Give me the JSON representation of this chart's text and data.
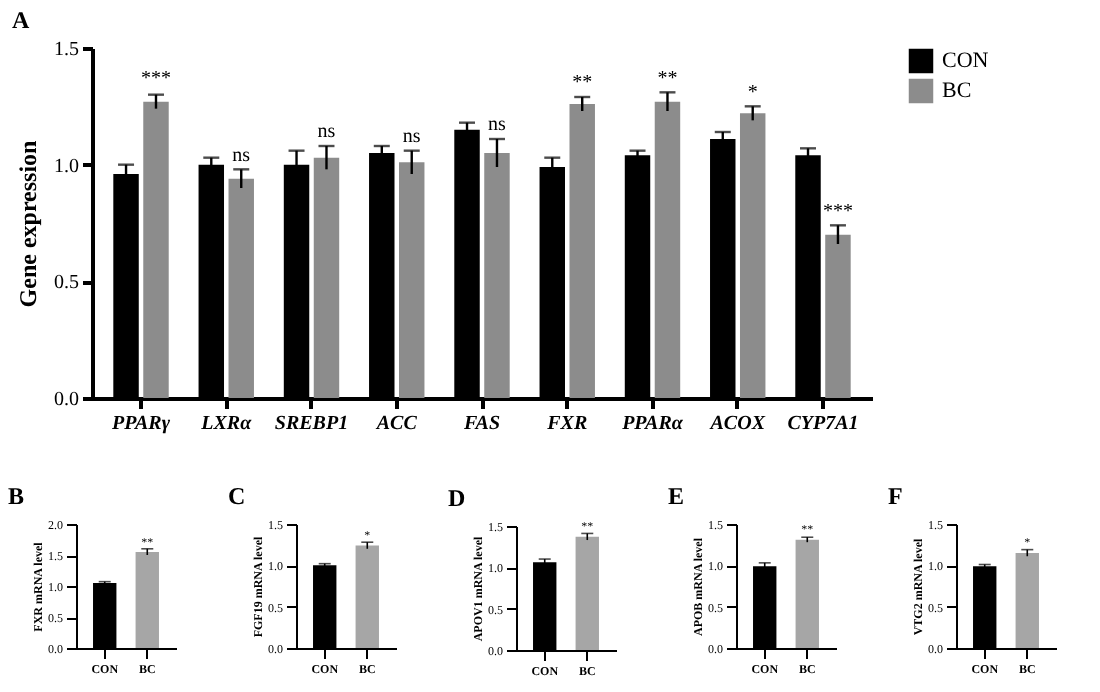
{
  "chart_data": [
    {
      "type": "bar",
      "title": "A",
      "ylabel": "Gene expression",
      "categories": [
        "PPARγ",
        "LXRα",
        "SREBP1",
        "ACC",
        "FAS",
        "FXR",
        "PPARα",
        "ACOX",
        "CYP7A1"
      ],
      "series": [
        {
          "name": "CON",
          "color": "#000000",
          "values": [
            0.96,
            1.0,
            1.0,
            1.05,
            1.15,
            0.99,
            1.04,
            1.11,
            1.04
          ],
          "errors": [
            0.04,
            0.03,
            0.06,
            0.03,
            0.03,
            0.04,
            0.02,
            0.03,
            0.03
          ]
        },
        {
          "name": "BC",
          "color": "#8c8c8c",
          "values": [
            1.27,
            0.94,
            1.03,
            1.01,
            1.05,
            1.26,
            1.27,
            1.22,
            0.7
          ],
          "errors": [
            0.03,
            0.04,
            0.05,
            0.05,
            0.06,
            0.03,
            0.04,
            0.03,
            0.04
          ]
        }
      ],
      "ylim": [
        0,
        1.5
      ],
      "yticks": [
        {
          "value": 0,
          "label": "0.0"
        },
        {
          "value": 0.5,
          "label": "0.5"
        },
        {
          "value": 1,
          "label": "1.0"
        },
        {
          "value": 1.5,
          "label": "1.5"
        }
      ],
      "legend": "top right",
      "annotations": [
        {
          "text": "***",
          "x": "PPARγ",
          "y": 1.33
        },
        {
          "text": "ns",
          "x": "LXRα",
          "y": 1.0
        },
        {
          "text": "ns",
          "x": "SREBP1",
          "y": 1.1
        },
        {
          "text": "ns",
          "x": "ACC",
          "y": 1.08
        },
        {
          "text": "ns",
          "x": "FAS",
          "y": 1.13
        },
        {
          "text": "**",
          "x": "FXR",
          "y": 1.31
        },
        {
          "text": "**",
          "x": "PPARα",
          "y": 1.33
        },
        {
          "text": "*",
          "x": "ACOX",
          "y": 1.27
        },
        {
          "text": "***",
          "x": "CYP7A1",
          "y": 0.76
        }
      ]
    },
    {
      "type": "bar",
      "title": "B",
      "ylabel": "FXR mRNA level",
      "categories": [
        "CON",
        "BC"
      ],
      "values": [
        1.05,
        1.55
      ],
      "colors": [
        "#000000",
        "#a6a6a6"
      ],
      "errors": [
        0.02,
        0.05
      ],
      "ylim": [
        0,
        2
      ],
      "yticks": [
        {
          "value": 0,
          "label": "0.0"
        },
        {
          "value": 0.5,
          "label": "0.5"
        },
        {
          "value": 1,
          "label": "1.0"
        },
        {
          "value": 1.5,
          "label": "1.5"
        },
        {
          "value": 2,
          "label": "2.0"
        }
      ],
      "annotations": [
        {
          "text": "**",
          "x": "BC",
          "y": 1.62
        }
      ]
    },
    {
      "type": "bar",
      "title": "C",
      "ylabel": "FGF19 mRNA level",
      "categories": [
        "CON",
        "BC"
      ],
      "values": [
        1.0,
        1.24
      ],
      "colors": [
        "#000000",
        "#a6a6a6"
      ],
      "errors": [
        0.02,
        0.04
      ],
      "ylim": [
        0,
        1.5
      ],
      "yticks": [
        {
          "value": 0,
          "label": "0.0"
        },
        {
          "value": 0.5,
          "label": "0.5"
        },
        {
          "value": 1,
          "label": "1.0"
        },
        {
          "value": 1.5,
          "label": "1.5"
        }
      ],
      "annotations": [
        {
          "text": "*",
          "x": "BC",
          "y": 1.3
        }
      ]
    },
    {
      "type": "bar",
      "title": "D",
      "ylabel": "APOV1 mRNA level",
      "categories": [
        "CON",
        "BC"
      ],
      "values": [
        1.06,
        1.37
      ],
      "colors": [
        "#000000",
        "#a6a6a6"
      ],
      "errors": [
        0.04,
        0.04
      ],
      "ylim": [
        0,
        1.5
      ],
      "yticks": [
        {
          "value": 0,
          "label": "0.0"
        },
        {
          "value": 0.5,
          "label": "0.5"
        },
        {
          "value": 1,
          "label": "1.0"
        },
        {
          "value": 1.5,
          "label": "1.5"
        }
      ],
      "annotations": [
        {
          "text": "**",
          "x": "BC",
          "y": 1.43
        }
      ]
    },
    {
      "type": "bar",
      "title": "E",
      "ylabel": "APOB mRNA level",
      "categories": [
        "CON",
        "BC"
      ],
      "values": [
        0.99,
        1.31
      ],
      "colors": [
        "#000000",
        "#a6a6a6"
      ],
      "errors": [
        0.04,
        0.03
      ],
      "ylim": [
        0,
        1.5
      ],
      "yticks": [
        {
          "value": 0,
          "label": "0.0"
        },
        {
          "value": 0.5,
          "label": "0.5"
        },
        {
          "value": 1,
          "label": "1.0"
        },
        {
          "value": 1.5,
          "label": "1.5"
        }
      ],
      "annotations": [
        {
          "text": "**",
          "x": "BC",
          "y": 1.37
        }
      ]
    },
    {
      "type": "bar",
      "title": "F",
      "ylabel": "VTG2 mRNA level",
      "categories": [
        "CON",
        "BC"
      ],
      "values": [
        0.99,
        1.15
      ],
      "colors": [
        "#000000",
        "#a6a6a6"
      ],
      "errors": [
        0.02,
        0.04
      ],
      "ylim": [
        0,
        1.5
      ],
      "yticks": [
        {
          "value": 0,
          "label": "0.0"
        },
        {
          "value": 0.5,
          "label": "0.5"
        },
        {
          "value": 1,
          "label": "1.0"
        },
        {
          "value": 1.5,
          "label": "1.5"
        }
      ],
      "annotations": [
        {
          "text": "*",
          "x": "BC",
          "y": 1.21
        }
      ]
    }
  ]
}
